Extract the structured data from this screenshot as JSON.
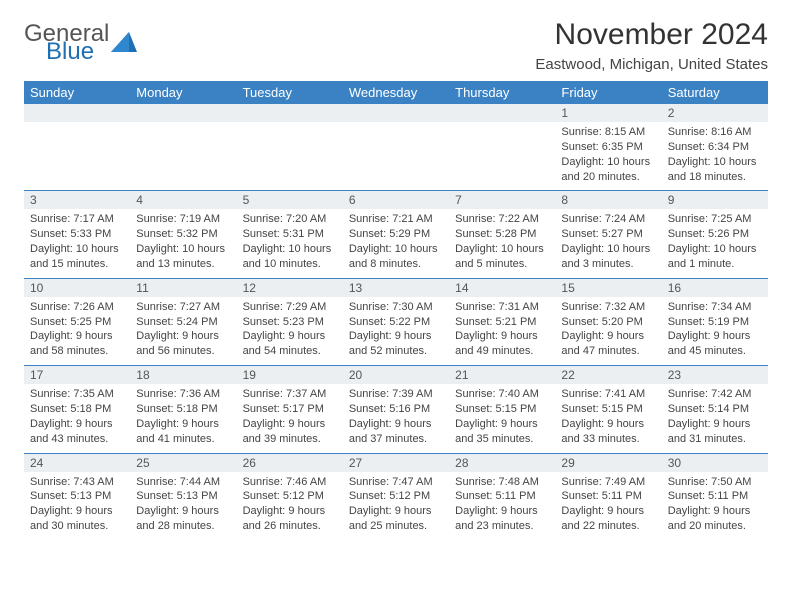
{
  "brand": {
    "general": "General",
    "blue": "Blue"
  },
  "header": {
    "month_title": "November 2024",
    "location": "Eastwood, Michigan, United States"
  },
  "colors": {
    "header_bg": "#3b82c4",
    "header_fg": "#ffffff",
    "daynum_bg": "#eceff1",
    "week_divider": "#3b82c4",
    "text": "#444444",
    "brand_blue": "#1f6fb2"
  },
  "day_labels": [
    "Sunday",
    "Monday",
    "Tuesday",
    "Wednesday",
    "Thursday",
    "Friday",
    "Saturday"
  ],
  "weeks": [
    [
      {
        "blank": true
      },
      {
        "blank": true
      },
      {
        "blank": true
      },
      {
        "blank": true
      },
      {
        "blank": true
      },
      {
        "num": "1",
        "sunrise": "Sunrise: 8:15 AM",
        "sunset": "Sunset: 6:35 PM",
        "daylight": "Daylight: 10 hours and 20 minutes."
      },
      {
        "num": "2",
        "sunrise": "Sunrise: 8:16 AM",
        "sunset": "Sunset: 6:34 PM",
        "daylight": "Daylight: 10 hours and 18 minutes."
      }
    ],
    [
      {
        "num": "3",
        "sunrise": "Sunrise: 7:17 AM",
        "sunset": "Sunset: 5:33 PM",
        "daylight": "Daylight: 10 hours and 15 minutes."
      },
      {
        "num": "4",
        "sunrise": "Sunrise: 7:19 AM",
        "sunset": "Sunset: 5:32 PM",
        "daylight": "Daylight: 10 hours and 13 minutes."
      },
      {
        "num": "5",
        "sunrise": "Sunrise: 7:20 AM",
        "sunset": "Sunset: 5:31 PM",
        "daylight": "Daylight: 10 hours and 10 minutes."
      },
      {
        "num": "6",
        "sunrise": "Sunrise: 7:21 AM",
        "sunset": "Sunset: 5:29 PM",
        "daylight": "Daylight: 10 hours and 8 minutes."
      },
      {
        "num": "7",
        "sunrise": "Sunrise: 7:22 AM",
        "sunset": "Sunset: 5:28 PM",
        "daylight": "Daylight: 10 hours and 5 minutes."
      },
      {
        "num": "8",
        "sunrise": "Sunrise: 7:24 AM",
        "sunset": "Sunset: 5:27 PM",
        "daylight": "Daylight: 10 hours and 3 minutes."
      },
      {
        "num": "9",
        "sunrise": "Sunrise: 7:25 AM",
        "sunset": "Sunset: 5:26 PM",
        "daylight": "Daylight: 10 hours and 1 minute."
      }
    ],
    [
      {
        "num": "10",
        "sunrise": "Sunrise: 7:26 AM",
        "sunset": "Sunset: 5:25 PM",
        "daylight": "Daylight: 9 hours and 58 minutes."
      },
      {
        "num": "11",
        "sunrise": "Sunrise: 7:27 AM",
        "sunset": "Sunset: 5:24 PM",
        "daylight": "Daylight: 9 hours and 56 minutes."
      },
      {
        "num": "12",
        "sunrise": "Sunrise: 7:29 AM",
        "sunset": "Sunset: 5:23 PM",
        "daylight": "Daylight: 9 hours and 54 minutes."
      },
      {
        "num": "13",
        "sunrise": "Sunrise: 7:30 AM",
        "sunset": "Sunset: 5:22 PM",
        "daylight": "Daylight: 9 hours and 52 minutes."
      },
      {
        "num": "14",
        "sunrise": "Sunrise: 7:31 AM",
        "sunset": "Sunset: 5:21 PM",
        "daylight": "Daylight: 9 hours and 49 minutes."
      },
      {
        "num": "15",
        "sunrise": "Sunrise: 7:32 AM",
        "sunset": "Sunset: 5:20 PM",
        "daylight": "Daylight: 9 hours and 47 minutes."
      },
      {
        "num": "16",
        "sunrise": "Sunrise: 7:34 AM",
        "sunset": "Sunset: 5:19 PM",
        "daylight": "Daylight: 9 hours and 45 minutes."
      }
    ],
    [
      {
        "num": "17",
        "sunrise": "Sunrise: 7:35 AM",
        "sunset": "Sunset: 5:18 PM",
        "daylight": "Daylight: 9 hours and 43 minutes."
      },
      {
        "num": "18",
        "sunrise": "Sunrise: 7:36 AM",
        "sunset": "Sunset: 5:18 PM",
        "daylight": "Daylight: 9 hours and 41 minutes."
      },
      {
        "num": "19",
        "sunrise": "Sunrise: 7:37 AM",
        "sunset": "Sunset: 5:17 PM",
        "daylight": "Daylight: 9 hours and 39 minutes."
      },
      {
        "num": "20",
        "sunrise": "Sunrise: 7:39 AM",
        "sunset": "Sunset: 5:16 PM",
        "daylight": "Daylight: 9 hours and 37 minutes."
      },
      {
        "num": "21",
        "sunrise": "Sunrise: 7:40 AM",
        "sunset": "Sunset: 5:15 PM",
        "daylight": "Daylight: 9 hours and 35 minutes."
      },
      {
        "num": "22",
        "sunrise": "Sunrise: 7:41 AM",
        "sunset": "Sunset: 5:15 PM",
        "daylight": "Daylight: 9 hours and 33 minutes."
      },
      {
        "num": "23",
        "sunrise": "Sunrise: 7:42 AM",
        "sunset": "Sunset: 5:14 PM",
        "daylight": "Daylight: 9 hours and 31 minutes."
      }
    ],
    [
      {
        "num": "24",
        "sunrise": "Sunrise: 7:43 AM",
        "sunset": "Sunset: 5:13 PM",
        "daylight": "Daylight: 9 hours and 30 minutes."
      },
      {
        "num": "25",
        "sunrise": "Sunrise: 7:44 AM",
        "sunset": "Sunset: 5:13 PM",
        "daylight": "Daylight: 9 hours and 28 minutes."
      },
      {
        "num": "26",
        "sunrise": "Sunrise: 7:46 AM",
        "sunset": "Sunset: 5:12 PM",
        "daylight": "Daylight: 9 hours and 26 minutes."
      },
      {
        "num": "27",
        "sunrise": "Sunrise: 7:47 AM",
        "sunset": "Sunset: 5:12 PM",
        "daylight": "Daylight: 9 hours and 25 minutes."
      },
      {
        "num": "28",
        "sunrise": "Sunrise: 7:48 AM",
        "sunset": "Sunset: 5:11 PM",
        "daylight": "Daylight: 9 hours and 23 minutes."
      },
      {
        "num": "29",
        "sunrise": "Sunrise: 7:49 AM",
        "sunset": "Sunset: 5:11 PM",
        "daylight": "Daylight: 9 hours and 22 minutes."
      },
      {
        "num": "30",
        "sunrise": "Sunrise: 7:50 AM",
        "sunset": "Sunset: 5:11 PM",
        "daylight": "Daylight: 9 hours and 20 minutes."
      }
    ]
  ]
}
